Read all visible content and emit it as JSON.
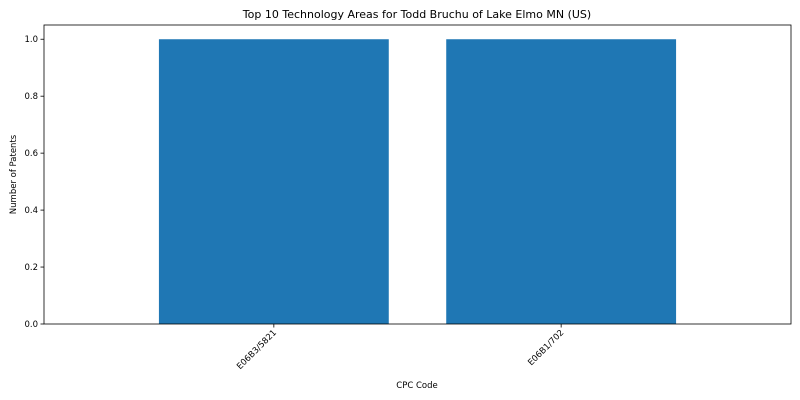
{
  "chart_data": {
    "type": "bar",
    "title": "Top 10 Technology Areas for Todd Bruchu of Lake Elmo MN (US)",
    "xlabel": "CPC Code",
    "ylabel": "Number of Patents",
    "categories": [
      "E06B3/5821",
      "E06B1/702"
    ],
    "values": [
      1,
      1
    ],
    "ylim": [
      0,
      1.05
    ],
    "yticks": [
      "0.0",
      "0.2",
      "0.4",
      "0.6",
      "0.8",
      "1.0"
    ],
    "bar_color": "#1f77b4",
    "grid": false,
    "legend": "none"
  }
}
